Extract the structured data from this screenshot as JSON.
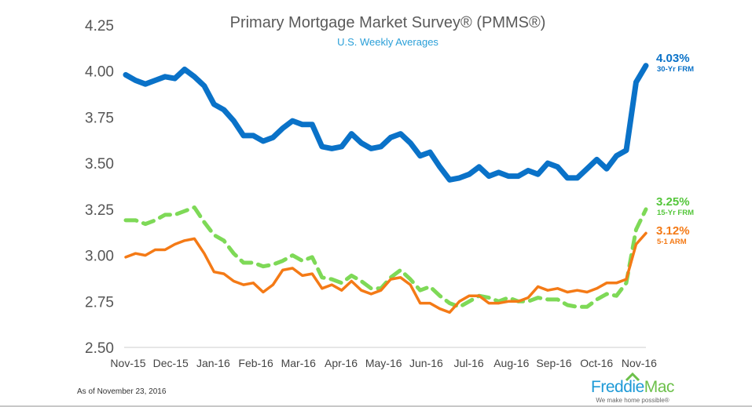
{
  "chart_data": {
    "type": "line",
    "title": "Primary Mortgage Market Survey® (PMMS®)",
    "subtitle": "U.S. Weekly Averages",
    "ylim": [
      2.5,
      4.25
    ],
    "yticks": [
      "2.50",
      "2.75",
      "3.00",
      "3.25",
      "3.50",
      "3.75",
      "4.00",
      "4.25"
    ],
    "ytick_values": [
      2.5,
      2.75,
      3.0,
      3.25,
      3.5,
      3.75,
      4.0,
      4.25
    ],
    "xtick_labels": [
      "Nov-15",
      "Dec-15",
      "Jan-16",
      "Feb-16",
      "Mar-16",
      "Apr-16",
      "May-16",
      "Jun-16",
      "Jul-16",
      "Aug-16",
      "Sep-16",
      "Oct-16",
      "Nov-16"
    ],
    "grid": false,
    "series": [
      {
        "name": "30-Yr FRM",
        "end_label": "4.03%",
        "color": "#0a72c8",
        "style": "solid",
        "values": [
          3.98,
          3.95,
          3.93,
          3.95,
          3.97,
          3.96,
          4.01,
          3.97,
          3.92,
          3.82,
          3.79,
          3.73,
          3.65,
          3.65,
          3.62,
          3.64,
          3.69,
          3.73,
          3.71,
          3.71,
          3.59,
          3.58,
          3.59,
          3.66,
          3.61,
          3.58,
          3.59,
          3.64,
          3.66,
          3.61,
          3.54,
          3.56,
          3.48,
          3.41,
          3.42,
          3.44,
          3.48,
          3.43,
          3.45,
          3.43,
          3.43,
          3.46,
          3.44,
          3.5,
          3.48,
          3.42,
          3.42,
          3.47,
          3.52,
          3.47,
          3.54,
          3.57,
          3.94,
          4.03
        ]
      },
      {
        "name": "15-Yr FRM",
        "end_label": "3.25%",
        "color": "#7ed957",
        "style": "dashed",
        "values": [
          3.19,
          3.19,
          3.17,
          3.19,
          3.22,
          3.22,
          3.24,
          3.26,
          3.18,
          3.11,
          3.08,
          3.01,
          2.96,
          2.96,
          2.94,
          2.95,
          2.97,
          3.0,
          2.97,
          2.99,
          2.88,
          2.87,
          2.85,
          2.89,
          2.86,
          2.82,
          2.82,
          2.88,
          2.92,
          2.87,
          2.81,
          2.83,
          2.78,
          2.74,
          2.72,
          2.75,
          2.78,
          2.77,
          2.75,
          2.77,
          2.75,
          2.75,
          2.77,
          2.76,
          2.76,
          2.73,
          2.72,
          2.72,
          2.76,
          2.79,
          2.78,
          2.85,
          3.14,
          3.25
        ]
      },
      {
        "name": "5-1 ARM",
        "end_label": "3.12%",
        "color": "#f47a16",
        "style": "solid",
        "values": [
          2.99,
          3.01,
          3.0,
          3.03,
          3.03,
          3.06,
          3.08,
          3.09,
          3.01,
          2.91,
          2.9,
          2.86,
          2.84,
          2.85,
          2.8,
          2.84,
          2.92,
          2.93,
          2.89,
          2.9,
          2.82,
          2.84,
          2.81,
          2.86,
          2.81,
          2.79,
          2.81,
          2.87,
          2.88,
          2.84,
          2.74,
          2.74,
          2.71,
          2.69,
          2.75,
          2.78,
          2.78,
          2.74,
          2.74,
          2.75,
          2.75,
          2.77,
          2.83,
          2.81,
          2.82,
          2.8,
          2.81,
          2.8,
          2.82,
          2.85,
          2.85,
          2.87,
          3.06,
          3.12
        ]
      }
    ]
  },
  "footer": {
    "as_of": "As of November 23, 2016",
    "logo_freddie": "Freddie",
    "logo_mac": "Mac",
    "logo_tagline": "We make home possible®"
  }
}
